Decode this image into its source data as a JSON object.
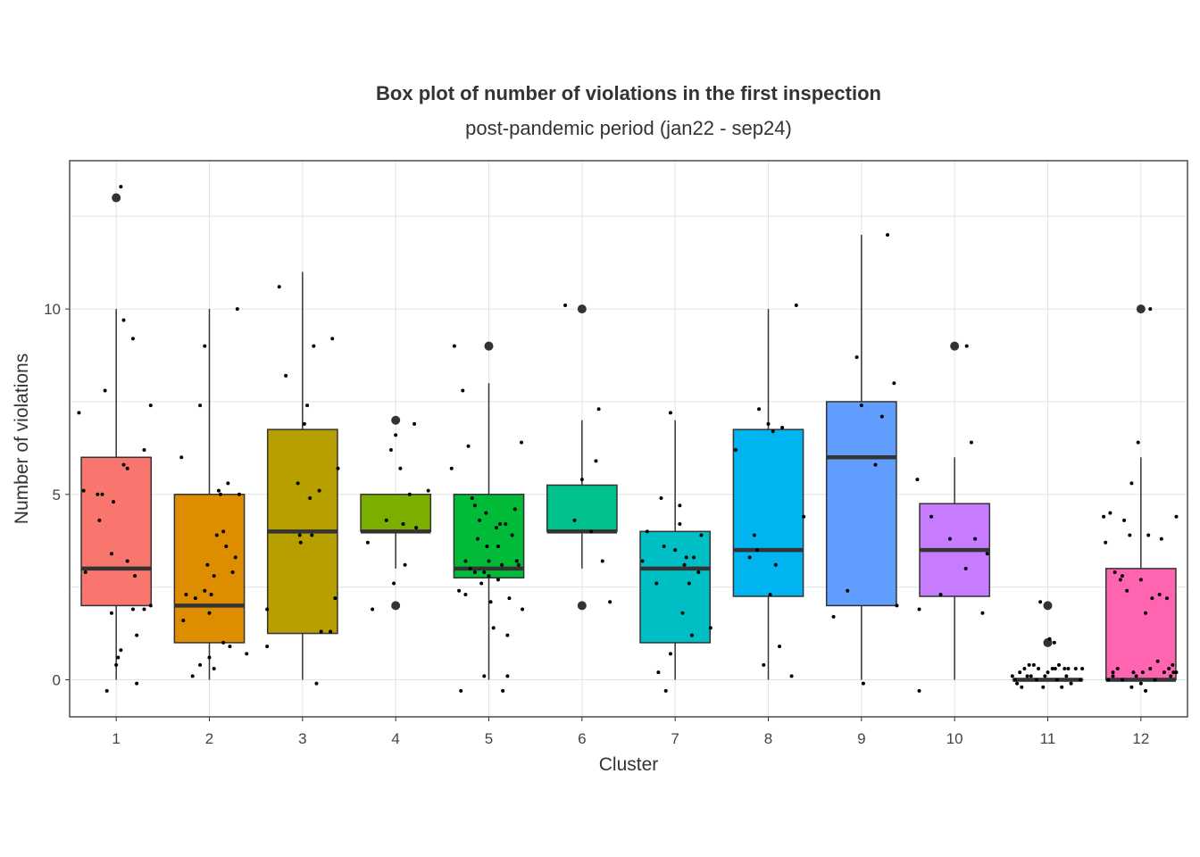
{
  "chart_data": {
    "type": "box",
    "title": "Box plot of number of violations in the first inspection",
    "subtitle": "post-pandemic period (jan22 - sep24)",
    "xlabel": "Cluster",
    "ylabel": "Number of violations",
    "ylim": [
      -1,
      14
    ],
    "yticks": [
      0,
      5,
      10
    ],
    "grid": true,
    "legend": "none",
    "categories": [
      "1",
      "2",
      "3",
      "4",
      "5",
      "6",
      "7",
      "8",
      "9",
      "10",
      "11",
      "12"
    ],
    "boxes": [
      {
        "cluster": "1",
        "color": "#F8766D",
        "q1": 2,
        "median": 3,
        "q3": 6,
        "whisker_low": 0,
        "whisker_high": 10,
        "outliers": [
          13
        ],
        "points": [
          [
            -0.4,
            7.2
          ],
          [
            -0.35,
            5.1
          ],
          [
            -0.33,
            2.9
          ],
          [
            -0.2,
            5.0
          ],
          [
            -0.12,
            7.8
          ],
          [
            -0.15,
            5.0
          ],
          [
            -0.18,
            4.3
          ],
          [
            -0.1,
            -0.3
          ],
          [
            -0.05,
            3.4
          ],
          [
            -0.05,
            1.8
          ],
          [
            -0.03,
            4.8
          ],
          [
            0,
            0.4
          ],
          [
            0.02,
            0.6
          ],
          [
            0.05,
            13.3
          ],
          [
            0.08,
            9.7
          ],
          [
            0.08,
            5.8
          ],
          [
            0.12,
            5.7
          ],
          [
            0.12,
            3.2
          ],
          [
            0.18,
            9.2
          ],
          [
            0.18,
            1.9
          ],
          [
            0.2,
            2.8
          ],
          [
            0.22,
            -0.1
          ],
          [
            0.22,
            1.2
          ],
          [
            0.3,
            6.2
          ],
          [
            0.3,
            1.9
          ],
          [
            0.37,
            7.4
          ],
          [
            0.37,
            2.0
          ],
          [
            0.05,
            0.8
          ]
        ]
      },
      {
        "cluster": "2",
        "color": "#DE8C00",
        "q1": 1,
        "median": 2,
        "q3": 5,
        "whisker_low": 0,
        "whisker_high": 10,
        "outliers": [],
        "points": [
          [
            -0.3,
            6.0
          ],
          [
            -0.28,
            1.6
          ],
          [
            -0.25,
            2.3
          ],
          [
            -0.18,
            0.1
          ],
          [
            -0.15,
            2.2
          ],
          [
            -0.1,
            7.4
          ],
          [
            -0.1,
            0.4
          ],
          [
            -0.05,
            9.0
          ],
          [
            -0.05,
            2.4
          ],
          [
            -0.02,
            3.1
          ],
          [
            0,
            1.8
          ],
          [
            0,
            0.6
          ],
          [
            0.02,
            2.3
          ],
          [
            0.05,
            2.8
          ],
          [
            0.05,
            0.3
          ],
          [
            0.1,
            5.1
          ],
          [
            0.12,
            5.0
          ],
          [
            0.15,
            4.0
          ],
          [
            0.15,
            1.0
          ],
          [
            0.18,
            3.6
          ],
          [
            0.2,
            5.3
          ],
          [
            0.22,
            0.9
          ],
          [
            0.25,
            2.9
          ],
          [
            0.28,
            3.3
          ],
          [
            0.3,
            10.0
          ],
          [
            0.32,
            5.0
          ],
          [
            0.4,
            0.7
          ],
          [
            0.08,
            3.9
          ]
        ]
      },
      {
        "cluster": "3",
        "color": "#B79F00",
        "q1": 1.25,
        "median": 4,
        "q3": 6.75,
        "whisker_low": 0,
        "whisker_high": 11,
        "outliers": [],
        "points": [
          [
            -0.38,
            0.9
          ],
          [
            -0.38,
            1.9
          ],
          [
            -0.25,
            10.6
          ],
          [
            -0.18,
            8.2
          ],
          [
            -0.05,
            5.3
          ],
          [
            -0.03,
            3.9
          ],
          [
            -0.02,
            3.7
          ],
          [
            0.02,
            6.9
          ],
          [
            0.05,
            7.4
          ],
          [
            0.08,
            4.9
          ],
          [
            0.1,
            3.9
          ],
          [
            0.12,
            9.0
          ],
          [
            0.15,
            -0.1
          ],
          [
            0.18,
            5.1
          ],
          [
            0.2,
            1.3
          ],
          [
            0.3,
            1.3
          ],
          [
            0.32,
            9.2
          ],
          [
            0.35,
            2.2
          ],
          [
            0.38,
            5.7
          ]
        ]
      },
      {
        "cluster": "4",
        "color": "#7CAE00",
        "q1": 4,
        "median": 4,
        "q3": 5,
        "whisker_low": 3,
        "whisker_high": 5,
        "outliers": [
          7,
          2
        ],
        "points": [
          [
            -0.3,
            3.7
          ],
          [
            -0.25,
            1.9
          ],
          [
            -0.1,
            4.3
          ],
          [
            -0.05,
            6.2
          ],
          [
            -0.02,
            2.6
          ],
          [
            0,
            6.6
          ],
          [
            0.05,
            5.7
          ],
          [
            0.08,
            4.2
          ],
          [
            0.1,
            3.1
          ],
          [
            0.15,
            5.0
          ],
          [
            0.2,
            6.9
          ],
          [
            0.22,
            4.1
          ],
          [
            0.35,
            5.1
          ]
        ]
      },
      {
        "cluster": "5",
        "color": "#00BA38",
        "q1": 2.75,
        "median": 3,
        "q3": 5,
        "whisker_low": 0,
        "whisker_high": 8,
        "outliers": [
          9
        ],
        "points": [
          [
            -0.4,
            5.7
          ],
          [
            -0.37,
            9.0
          ],
          [
            -0.32,
            2.4
          ],
          [
            -0.28,
            7.8
          ],
          [
            -0.25,
            2.3
          ],
          [
            -0.25,
            3.2
          ],
          [
            -0.22,
            6.3
          ],
          [
            -0.2,
            3.0
          ],
          [
            -0.18,
            4.9
          ],
          [
            -0.15,
            2.9
          ],
          [
            -0.15,
            4.7
          ],
          [
            -0.12,
            3.8
          ],
          [
            -0.1,
            4.3
          ],
          [
            -0.08,
            2.6
          ],
          [
            -0.05,
            2.9
          ],
          [
            -0.05,
            0.1
          ],
          [
            -0.03,
            4.5
          ],
          [
            -0.02,
            3.6
          ],
          [
            0,
            3.2
          ],
          [
            0.02,
            2.1
          ],
          [
            0.05,
            1.4
          ],
          [
            0.08,
            4.1
          ],
          [
            0.1,
            2.7
          ],
          [
            0.12,
            4.2
          ],
          [
            0.14,
            3.1
          ],
          [
            0.15,
            -0.3
          ],
          [
            0.18,
            4.2
          ],
          [
            0.2,
            0.1
          ],
          [
            0.2,
            1.2
          ],
          [
            0.22,
            2.2
          ],
          [
            0.25,
            3.9
          ],
          [
            0.3,
            3.2
          ],
          [
            0.32,
            3.1
          ],
          [
            0.35,
            6.4
          ],
          [
            0.36,
            1.9
          ],
          [
            0.28,
            4.6
          ],
          [
            -0.3,
            -0.3
          ],
          [
            0,
            2.8
          ],
          [
            0.1,
            3.6
          ]
        ]
      },
      {
        "cluster": "6",
        "color": "#00C08B",
        "q1": 4,
        "median": 4,
        "q3": 5.25,
        "whisker_low": 3,
        "whisker_high": 7,
        "outliers": [
          10,
          2
        ],
        "points": [
          [
            -0.18,
            10.1
          ],
          [
            -0.08,
            4.3
          ],
          [
            0,
            5.4
          ],
          [
            0.15,
            5.9
          ],
          [
            0.18,
            7.3
          ],
          [
            0.22,
            3.2
          ],
          [
            0.3,
            2.1
          ],
          [
            0.1,
            4.0
          ]
        ]
      },
      {
        "cluster": "7",
        "color": "#00BFC4",
        "q1": 1,
        "median": 3,
        "q3": 4,
        "whisker_low": 0,
        "whisker_high": 7,
        "outliers": [],
        "points": [
          [
            -0.35,
            3.2
          ],
          [
            -0.3,
            4.0
          ],
          [
            -0.2,
            2.6
          ],
          [
            -0.18,
            0.2
          ],
          [
            -0.15,
            4.9
          ],
          [
            -0.12,
            3.6
          ],
          [
            -0.1,
            -0.3
          ],
          [
            -0.05,
            7.2
          ],
          [
            -0.05,
            0.7
          ],
          [
            0,
            3.5
          ],
          [
            0.05,
            4.2
          ],
          [
            0.05,
            4.7
          ],
          [
            0.08,
            1.8
          ],
          [
            0.12,
            3.3
          ],
          [
            0.15,
            2.6
          ],
          [
            0.18,
            1.2
          ],
          [
            0.2,
            3.3
          ],
          [
            0.25,
            2.9
          ],
          [
            0.28,
            3.9
          ],
          [
            0.38,
            1.4
          ],
          [
            0.1,
            3.1
          ]
        ]
      },
      {
        "cluster": "8",
        "color": "#00B4F0",
        "q1": 2.25,
        "median": 3.5,
        "q3": 6.75,
        "whisker_low": 0,
        "whisker_high": 10,
        "outliers": [],
        "points": [
          [
            -0.35,
            6.2
          ],
          [
            -0.2,
            3.3
          ],
          [
            -0.15,
            3.9
          ],
          [
            -0.12,
            3.5
          ],
          [
            -0.1,
            7.3
          ],
          [
            -0.05,
            0.4
          ],
          [
            0,
            6.9
          ],
          [
            0.02,
            2.3
          ],
          [
            0.05,
            6.7
          ],
          [
            0.08,
            3.1
          ],
          [
            0.12,
            0.9
          ],
          [
            0.15,
            6.8
          ],
          [
            0.25,
            0.1
          ],
          [
            0.3,
            10.1
          ],
          [
            0.38,
            4.4
          ]
        ]
      },
      {
        "cluster": "9",
        "color": "#619CFF",
        "q1": 2,
        "median": 6,
        "q3": 7.5,
        "whisker_low": 0,
        "whisker_high": 12,
        "outliers": [],
        "points": [
          [
            -0.3,
            1.7
          ],
          [
            -0.15,
            2.4
          ],
          [
            -0.05,
            8.7
          ],
          [
            0,
            7.4
          ],
          [
            0.02,
            -0.1
          ],
          [
            0.15,
            5.8
          ],
          [
            0.22,
            7.1
          ],
          [
            0.28,
            12.0
          ],
          [
            0.35,
            8.0
          ],
          [
            0.38,
            2.0
          ]
        ]
      },
      {
        "cluster": "10",
        "color": "#C77CFF",
        "q1": 2.25,
        "median": 3.5,
        "q3": 4.75,
        "whisker_low": 0,
        "whisker_high": 6,
        "outliers": [
          9
        ],
        "points": [
          [
            -0.4,
            5.4
          ],
          [
            -0.38,
            1.9
          ],
          [
            -0.38,
            -0.3
          ],
          [
            -0.25,
            4.4
          ],
          [
            -0.15,
            2.3
          ],
          [
            -0.05,
            3.8
          ],
          [
            0.12,
            3.0
          ],
          [
            0.13,
            9.0
          ],
          [
            0.18,
            6.4
          ],
          [
            0.22,
            3.8
          ],
          [
            0.3,
            1.8
          ],
          [
            0.35,
            3.4
          ]
        ]
      },
      {
        "cluster": "11",
        "color": "#F564E3",
        "q1": 0,
        "median": 0,
        "q3": 0,
        "whisker_low": 0,
        "whisker_high": 0,
        "outliers": [
          2,
          1
        ],
        "points": [
          [
            -0.38,
            0.1
          ],
          [
            -0.35,
            0.0
          ],
          [
            -0.33,
            -0.1
          ],
          [
            -0.3,
            0.2
          ],
          [
            -0.28,
            -0.2
          ],
          [
            -0.25,
            0.3
          ],
          [
            -0.22,
            0.1
          ],
          [
            -0.2,
            0.4
          ],
          [
            -0.18,
            0.1
          ],
          [
            -0.15,
            0.4
          ],
          [
            -0.12,
            0.0
          ],
          [
            -0.1,
            0.3
          ],
          [
            -0.08,
            2.1
          ],
          [
            -0.05,
            -0.2
          ],
          [
            -0.03,
            0.1
          ],
          [
            0,
            0.2
          ],
          [
            0.02,
            1.1
          ],
          [
            0.05,
            0.3
          ],
          [
            0.07,
            1.0
          ],
          [
            0.08,
            0.3
          ],
          [
            0.1,
            0.0
          ],
          [
            0.12,
            0.4
          ],
          [
            0.15,
            -0.2
          ],
          [
            0.18,
            0.3
          ],
          [
            0.2,
            0.1
          ],
          [
            0.22,
            0.3
          ],
          [
            0.25,
            -0.1
          ],
          [
            0.3,
            0.3
          ],
          [
            0.35,
            0.0
          ],
          [
            0.37,
            0.3
          ]
        ]
      },
      {
        "cluster": "12",
        "color": "#FF64B0",
        "q1": 0,
        "median": 0,
        "q3": 3,
        "whisker_low": 0,
        "whisker_high": 6,
        "outliers": [
          10
        ],
        "points": [
          [
            -0.4,
            4.4
          ],
          [
            -0.38,
            3.7
          ],
          [
            -0.35,
            0.0
          ],
          [
            -0.33,
            4.5
          ],
          [
            -0.3,
            0.2
          ],
          [
            -0.28,
            2.9
          ],
          [
            -0.25,
            0.3
          ],
          [
            -0.22,
            2.7
          ],
          [
            -0.2,
            0.0
          ],
          [
            -0.18,
            4.3
          ],
          [
            -0.15,
            2.4
          ],
          [
            -0.12,
            3.9
          ],
          [
            -0.1,
            5.3
          ],
          [
            -0.1,
            -0.2
          ],
          [
            -0.08,
            0.2
          ],
          [
            -0.05,
            0.1
          ],
          [
            -0.03,
            6.4
          ],
          [
            0,
            2.7
          ],
          [
            0.02,
            0.2
          ],
          [
            0.05,
            1.8
          ],
          [
            0.05,
            -0.3
          ],
          [
            0.08,
            3.9
          ],
          [
            0.1,
            0.3
          ],
          [
            0.12,
            2.2
          ],
          [
            0.15,
            0.0
          ],
          [
            0.18,
            0.5
          ],
          [
            0.2,
            2.3
          ],
          [
            0.22,
            3.8
          ],
          [
            0.25,
            0.2
          ],
          [
            0.28,
            2.2
          ],
          [
            0.3,
            0.3
          ],
          [
            0.32,
            0.1
          ],
          [
            0.34,
            0.4
          ],
          [
            0.38,
            4.4
          ],
          [
            0.38,
            0.2
          ],
          [
            -0.2,
            2.8
          ],
          [
            0,
            -0.1
          ],
          [
            0.1,
            10.0
          ],
          [
            -0.3,
            0.1
          ],
          [
            0.35,
            0.2
          ]
        ]
      }
    ]
  }
}
